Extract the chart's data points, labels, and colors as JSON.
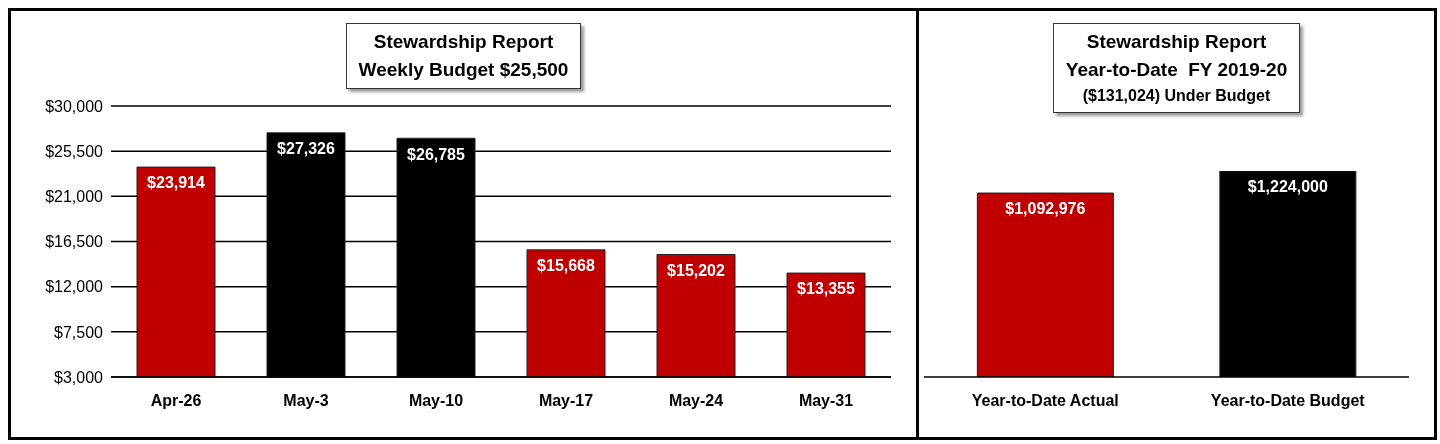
{
  "chart_data": [
    {
      "type": "bar",
      "title": "Stewardship Report",
      "subtitle": "Weekly Budget $25,500",
      "categories": [
        "Apr-26",
        "May-3",
        "May-10",
        "May-17",
        "May-24",
        "May-31"
      ],
      "values": [
        23914,
        27326,
        26785,
        15668,
        15202,
        13355
      ],
      "colors": [
        "#c00000",
        "#000000",
        "#000000",
        "#c00000",
        "#c00000",
        "#c00000"
      ],
      "value_labels": [
        "$23,914",
        "$27,326",
        "$26,785",
        "$15,668",
        "$15,202",
        "$13,355"
      ],
      "ylim": [
        3000,
        30000
      ],
      "yticks": [
        {
          "value": 3000,
          "label": "$3,000"
        },
        {
          "value": 7500,
          "label": "$7,500"
        },
        {
          "value": 12000,
          "label": "$12,000"
        },
        {
          "value": 16500,
          "label": "$16,500"
        },
        {
          "value": 21000,
          "label": "$21,000"
        },
        {
          "value": 25500,
          "label": "$25,500"
        },
        {
          "value": 30000,
          "label": "$30,000"
        }
      ],
      "grid": "y"
    },
    {
      "type": "bar",
      "title": "Stewardship Report",
      "subtitle": "Year-to-Date  FY 2019-20",
      "annotations": [
        "($131,024) Under Budget"
      ],
      "categories": [
        "Year-to-Date Actual",
        "Year-to-Date Budget"
      ],
      "values": [
        1092976,
        1224000
      ],
      "colors": [
        "#c00000",
        "#000000"
      ],
      "value_labels": [
        "$1,092,976",
        "$1,224,000"
      ],
      "tick_labels": "x",
      "grid": false
    }
  ]
}
